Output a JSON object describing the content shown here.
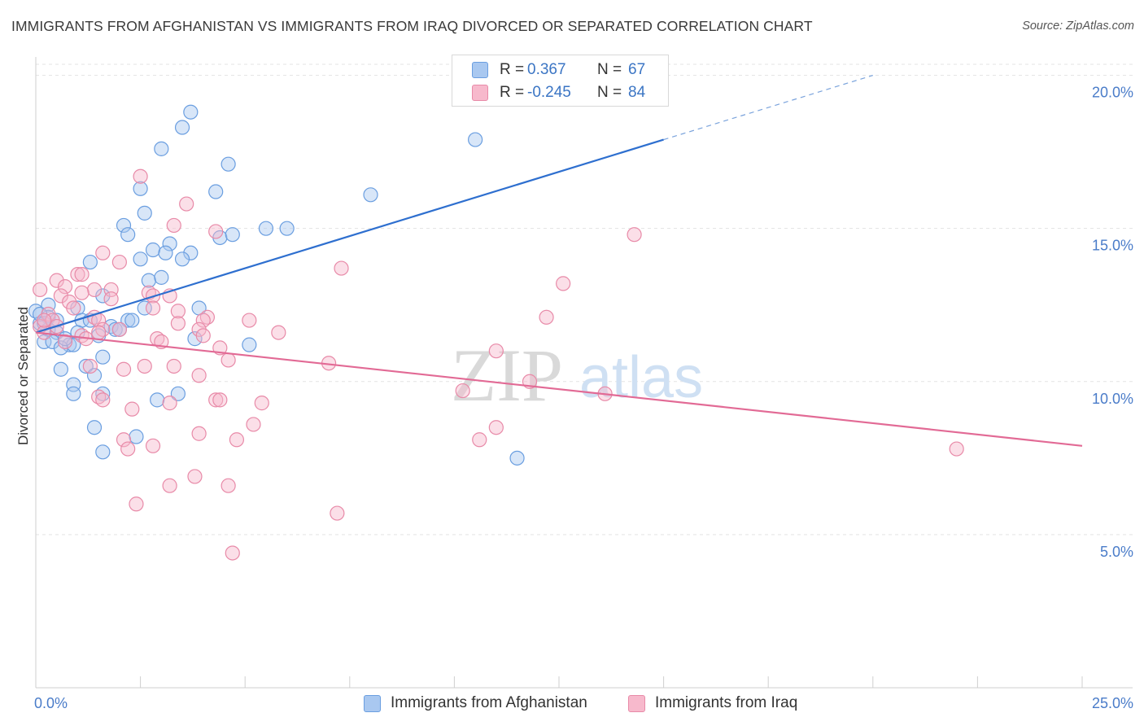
{
  "title": "IMMIGRANTS FROM AFGHANISTAN VS IMMIGRANTS FROM IRAQ DIVORCED OR SEPARATED CORRELATION CHART",
  "source": "Source: ZipAtlas.com",
  "watermark": {
    "zip": "ZIP",
    "atlas": "atlas"
  },
  "stats": {
    "rows": [
      {
        "r_label": "R =",
        "r_value": "0.367",
        "n_label": "N =",
        "n_value": "67",
        "color": "#a9c8f0",
        "border": "#6a9ee0"
      },
      {
        "r_label": "R =",
        "r_value": "-0.245",
        "n_label": "N =",
        "n_value": "84",
        "color": "#f7b9cc",
        "border": "#e88aa8"
      }
    ]
  },
  "legend": {
    "items": [
      {
        "label": "Immigrants from Afghanistan",
        "color": "#a9c8f0",
        "border": "#6a9ee0"
      },
      {
        "label": "Immigrants from Iraq",
        "color": "#f7b9cc",
        "border": "#e88aa8"
      }
    ]
  },
  "chart_data": {
    "type": "scatter",
    "title": "IMMIGRANTS FROM AFGHANISTAN VS IMMIGRANTS FROM IRAQ DIVORCED OR SEPARATED CORRELATION CHART",
    "xlabel": "",
    "ylabel": "Divorced or Separated",
    "xlim": [
      0,
      25
    ],
    "ylim": [
      0,
      20.6
    ],
    "x_tick_labels": [
      "0.0%",
      "25.0%"
    ],
    "y_ticks": [
      5,
      10,
      15,
      20
    ],
    "y_tick_labels": [
      "5.0%",
      "10.0%",
      "15.0%",
      "20.0%"
    ],
    "grid": true,
    "legend_position": "bottom",
    "series": [
      {
        "name": "Immigrants from Afghanistan",
        "color": "#6a9ee0",
        "fill": "rgba(169,200,240,0.45)",
        "trend": {
          "x": [
            0,
            15
          ],
          "y": [
            11.6,
            17.9
          ],
          "extend_dashed_to": [
            20,
            20
          ]
        },
        "points": [
          [
            3.7,
            18.8
          ],
          [
            3.5,
            18.3
          ],
          [
            3.0,
            17.6
          ],
          [
            4.6,
            17.1
          ],
          [
            10.5,
            17.9
          ],
          [
            2.5,
            16.3
          ],
          [
            4.3,
            16.2
          ],
          [
            8.0,
            16.1
          ],
          [
            2.6,
            15.5
          ],
          [
            2.1,
            15.1
          ],
          [
            2.2,
            14.8
          ],
          [
            5.5,
            15.0
          ],
          [
            6.0,
            15.0
          ],
          [
            4.4,
            14.7
          ],
          [
            4.7,
            14.8
          ],
          [
            3.2,
            14.5
          ],
          [
            2.8,
            14.3
          ],
          [
            3.1,
            14.2
          ],
          [
            3.7,
            14.2
          ],
          [
            3.5,
            14.0
          ],
          [
            2.5,
            14.0
          ],
          [
            1.3,
            13.9
          ],
          [
            2.7,
            13.3
          ],
          [
            3.0,
            13.4
          ],
          [
            1.6,
            12.8
          ],
          [
            0.3,
            12.5
          ],
          [
            1.0,
            12.4
          ],
          [
            2.6,
            12.4
          ],
          [
            3.9,
            12.4
          ],
          [
            0.3,
            12.1
          ],
          [
            0.5,
            12.0
          ],
          [
            1.1,
            12.0
          ],
          [
            2.2,
            12.0
          ],
          [
            2.3,
            12.0
          ],
          [
            0.1,
            11.9
          ],
          [
            0.3,
            11.7
          ],
          [
            1.8,
            11.8
          ],
          [
            1.9,
            11.7
          ],
          [
            0.5,
            11.6
          ],
          [
            1.0,
            11.6
          ],
          [
            1.5,
            11.5
          ],
          [
            0.2,
            11.3
          ],
          [
            0.4,
            11.3
          ],
          [
            0.8,
            11.2
          ],
          [
            0.9,
            11.2
          ],
          [
            0.6,
            11.1
          ],
          [
            3.8,
            11.4
          ],
          [
            5.1,
            11.2
          ],
          [
            1.6,
            10.8
          ],
          [
            1.2,
            10.5
          ],
          [
            0.6,
            10.4
          ],
          [
            1.4,
            10.2
          ],
          [
            0.9,
            9.9
          ],
          [
            1.6,
            9.6
          ],
          [
            0.9,
            9.6
          ],
          [
            3.4,
            9.6
          ],
          [
            2.9,
            9.4
          ],
          [
            1.4,
            8.5
          ],
          [
            2.4,
            8.2
          ],
          [
            1.6,
            7.7
          ],
          [
            11.5,
            7.5
          ],
          [
            0.0,
            12.3
          ],
          [
            0.1,
            12.2
          ],
          [
            0.2,
            11.9
          ],
          [
            0.7,
            11.4
          ],
          [
            1.3,
            12.0
          ],
          [
            2.0,
            11.7
          ]
        ]
      },
      {
        "name": "Immigrants from Iraq",
        "color": "#e88aa8",
        "fill": "rgba(247,185,204,0.45)",
        "trend": {
          "x": [
            0,
            25
          ],
          "y": [
            11.6,
            7.9
          ]
        },
        "points": [
          [
            2.5,
            16.7
          ],
          [
            3.6,
            15.8
          ],
          [
            3.3,
            15.1
          ],
          [
            4.3,
            14.9
          ],
          [
            14.3,
            14.8
          ],
          [
            1.6,
            14.2
          ],
          [
            2.0,
            13.9
          ],
          [
            7.3,
            13.7
          ],
          [
            1.0,
            13.5
          ],
          [
            1.1,
            13.5
          ],
          [
            0.5,
            13.3
          ],
          [
            12.6,
            13.2
          ],
          [
            0.1,
            13.0
          ],
          [
            0.7,
            13.1
          ],
          [
            1.4,
            13.0
          ],
          [
            1.8,
            13.0
          ],
          [
            2.7,
            12.9
          ],
          [
            2.8,
            12.8
          ],
          [
            3.2,
            12.8
          ],
          [
            1.1,
            12.9
          ],
          [
            0.6,
            12.8
          ],
          [
            1.8,
            12.7
          ],
          [
            0.8,
            12.6
          ],
          [
            0.9,
            12.4
          ],
          [
            2.8,
            12.4
          ],
          [
            3.4,
            12.3
          ],
          [
            0.3,
            12.2
          ],
          [
            1.4,
            12.1
          ],
          [
            4.1,
            12.1
          ],
          [
            12.2,
            12.1
          ],
          [
            0.4,
            12.0
          ],
          [
            1.5,
            12.0
          ],
          [
            4.0,
            12.0
          ],
          [
            5.1,
            12.0
          ],
          [
            3.4,
            11.9
          ],
          [
            0.1,
            11.8
          ],
          [
            0.5,
            11.8
          ],
          [
            1.6,
            11.7
          ],
          [
            2.0,
            11.7
          ],
          [
            3.9,
            11.7
          ],
          [
            0.2,
            11.6
          ],
          [
            1.1,
            11.5
          ],
          [
            1.5,
            11.6
          ],
          [
            4.0,
            11.5
          ],
          [
            5.8,
            11.6
          ],
          [
            0.7,
            11.3
          ],
          [
            1.2,
            11.4
          ],
          [
            2.9,
            11.4
          ],
          [
            3.0,
            11.3
          ],
          [
            4.4,
            11.1
          ],
          [
            11.0,
            11.0
          ],
          [
            4.6,
            10.7
          ],
          [
            7.0,
            10.6
          ],
          [
            3.3,
            10.5
          ],
          [
            2.6,
            10.5
          ],
          [
            2.1,
            10.4
          ],
          [
            1.3,
            10.5
          ],
          [
            3.9,
            10.2
          ],
          [
            11.8,
            10.0
          ],
          [
            10.2,
            9.7
          ],
          [
            13.6,
            9.6
          ],
          [
            1.5,
            9.5
          ],
          [
            4.3,
            9.4
          ],
          [
            1.6,
            9.4
          ],
          [
            4.4,
            9.4
          ],
          [
            3.2,
            9.3
          ],
          [
            5.4,
            9.3
          ],
          [
            2.3,
            9.1
          ],
          [
            5.2,
            8.6
          ],
          [
            11.0,
            8.5
          ],
          [
            3.9,
            8.3
          ],
          [
            2.1,
            8.1
          ],
          [
            10.6,
            8.1
          ],
          [
            4.8,
            8.1
          ],
          [
            2.8,
            7.9
          ],
          [
            2.2,
            7.8
          ],
          [
            22.0,
            7.8
          ],
          [
            3.8,
            6.9
          ],
          [
            3.2,
            6.6
          ],
          [
            4.6,
            6.6
          ],
          [
            2.4,
            6.0
          ],
          [
            7.2,
            5.7
          ],
          [
            4.7,
            4.4
          ],
          [
            0.2,
            12.0
          ]
        ]
      }
    ]
  }
}
